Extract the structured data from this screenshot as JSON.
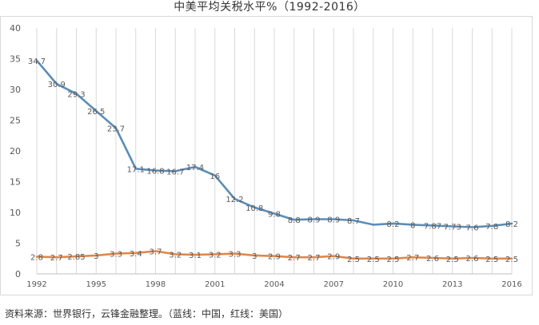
{
  "chart_data": {
    "type": "line",
    "title": "中美平均关税水平%（1992-2016）",
    "xlabel": "",
    "ylabel": "",
    "ylim": [
      0,
      40
    ],
    "yticks": [
      0,
      5,
      10,
      15,
      20,
      25,
      30,
      35,
      40
    ],
    "x": [
      1992,
      1993,
      1994,
      1995,
      1996,
      1997,
      1998,
      1999,
      2000,
      2001,
      2002,
      2003,
      2004,
      2005,
      2006,
      2007,
      2008,
      2009,
      2010,
      2011,
      2012,
      2013,
      2014,
      2015,
      2016
    ],
    "xtick_labels": [
      "1992",
      "1995",
      "1998",
      "2001",
      "2004",
      "2007",
      "2010",
      "2013",
      "2016"
    ],
    "grid": "vertical",
    "series": [
      {
        "color": "#5b8db8",
        "values": [
          34.7,
          30.9,
          29.3,
          26.5,
          23.7,
          17.1,
          16.8,
          16.7,
          17.4,
          16,
          12.2,
          10.8,
          9.8,
          8.8,
          8.9,
          8.9,
          8.7,
          8,
          8.2,
          8,
          7.87,
          7.73,
          7.6,
          7.8,
          8.2
        ],
        "labels": [
          "34.7",
          "30.9",
          "29.3",
          "26.5",
          "23.7",
          "17.1",
          "16.8",
          "16.7",
          "17.4",
          "16",
          "12.2",
          "10.8",
          "9.8",
          "8.8",
          "8.9",
          "8.9",
          "8.7",
          "",
          "8.2",
          "8",
          "7.87",
          "7.73",
          "7.6",
          "7.8",
          "8.2"
        ]
      },
      {
        "color": "#e0874a",
        "values": [
          2.8,
          2.7,
          2.85,
          3,
          3.3,
          3.4,
          3.7,
          3.2,
          3.1,
          3.2,
          3.3,
          3,
          2.9,
          2.7,
          2.7,
          2.9,
          2.5,
          2.5,
          2.5,
          2.7,
          2.6,
          2.5,
          2.6,
          2.5,
          2.5
        ],
        "labels": [
          "2.8",
          "2.7",
          "2.85",
          "3",
          "3.3",
          "3.4",
          "3.7",
          "3.2",
          "3.1",
          "3.2",
          "3.3",
          "3",
          "2.9",
          "2.7",
          "2.7",
          "2.9",
          "2.5",
          "2.5",
          "2.5",
          "2.7",
          "2.6",
          "2.5",
          "2.6",
          "2.5",
          "2.5"
        ]
      }
    ]
  },
  "source_note": "资料来源：世界银行，云锋金融整理。（蓝线：中国，红线：美国）",
  "colors": {
    "axis": "#bfbfbf",
    "grid": "#d9d9d9",
    "tick_text": "#595959",
    "label_text": "#595959"
  }
}
